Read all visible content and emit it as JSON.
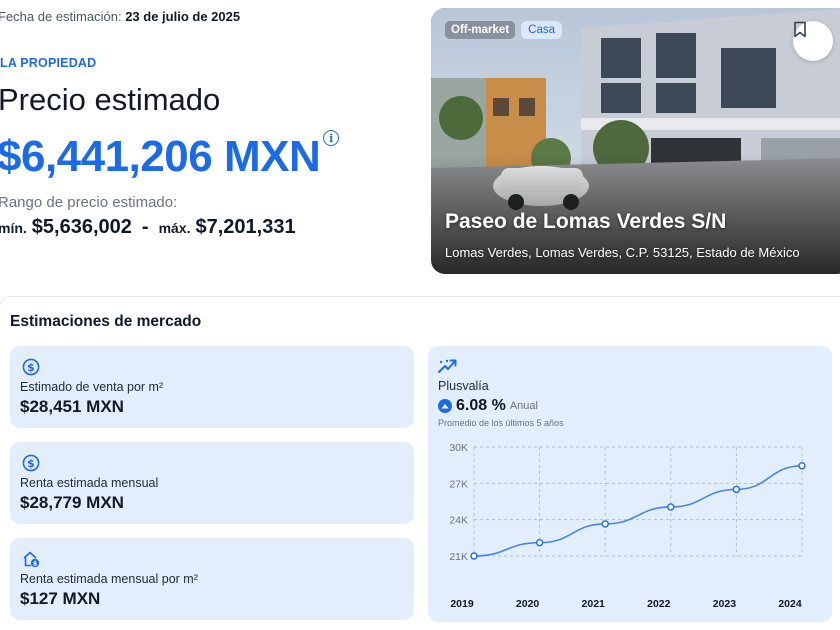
{
  "header": {
    "date_label": "Fecha de estimación:",
    "date_value": "23 de julio de 2025",
    "section_label": "LA PROPIEDAD",
    "title": "Precio estimado",
    "price": "$6,441,206 MXN",
    "info_glyph": "i",
    "range_label": "Rango de precio estimado:",
    "min_label": "mín.",
    "min_value": "$5,636,002",
    "dash": "-",
    "max_label": "máx.",
    "max_value": "$7,201,331"
  },
  "property": {
    "badge_status": "Off-market",
    "badge_type": "Casa",
    "address_title": "Paseo de Lomas Verdes S/N",
    "address_sub": "Lomas Verdes, Lomas Verdes, C.P. 53125, Estado de México",
    "bookmark_icon": "bookmark-icon"
  },
  "market": {
    "title": "Estimaciones de mercado",
    "cards": [
      {
        "label": "Estimado de venta por m²",
        "value": "$28,451 MXN",
        "icon": "dollar-circle-icon"
      },
      {
        "label": "Renta estimada mensual",
        "value": "$28,779 MXN",
        "icon": "dollar-circle-icon"
      },
      {
        "label": "Renta estimada mensual por m²",
        "value": "$127 MXN",
        "icon": "house-dollar-icon"
      }
    ],
    "plusvalia": {
      "label": "Plusvalía",
      "value": "6.08 %",
      "period": "Anual",
      "note": "Promedio de los últimos 5 años",
      "icon": "trending-up-icon"
    }
  },
  "colors": {
    "accent": "#1d6ae5",
    "card_bg": "#e3eefc"
  },
  "chart_data": {
    "type": "line",
    "x": [
      2019,
      2020,
      2021,
      2022,
      2023,
      2024
    ],
    "categories": [
      "2019",
      "2020",
      "2021",
      "2022",
      "2023",
      "2024"
    ],
    "values": [
      21000,
      22100,
      23650,
      25050,
      26500,
      28450
    ],
    "y_ticks": [
      "21K",
      "24K",
      "27K",
      "30K"
    ],
    "ylim": [
      21000,
      30000
    ],
    "grid": true,
    "title": "",
    "xlabel": "",
    "ylabel": ""
  }
}
